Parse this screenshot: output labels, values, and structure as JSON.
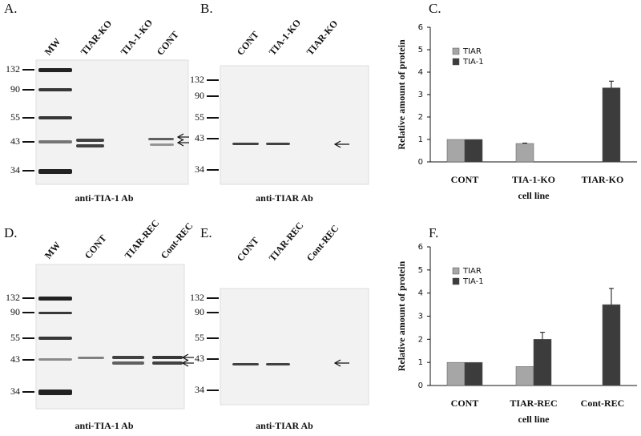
{
  "panels": [
    {
      "label": "A.",
      "lanes": [
        "MW",
        "TIAR-KO",
        "TIA-1-KO",
        "CONT"
      ],
      "markers": [
        132,
        90,
        55,
        43,
        34
      ],
      "caption": "anti-TIA-1 Ab"
    },
    {
      "label": "B.",
      "lanes": [
        "CONT",
        "TIA-1-KO",
        "TIAR-KO"
      ],
      "markers": [
        132,
        90,
        55,
        43,
        34
      ],
      "caption": "anti-TIAR Ab"
    },
    {
      "label": "D.",
      "lanes": [
        "MW",
        "CONT",
        "TIAR-REC",
        "Cont-REC"
      ],
      "markers": [
        132,
        90,
        55,
        43,
        34
      ],
      "caption": "anti-TIA-1 Ab"
    },
    {
      "label": "E.",
      "lanes": [
        "CONT",
        "TIAR-REC",
        "Cont-REC"
      ],
      "markers": [
        132,
        90,
        55,
        43,
        34
      ],
      "caption": "anti-TIAR Ab"
    }
  ],
  "chart_data": [
    {
      "type": "bar",
      "title": "C.",
      "y_label": "Relative amount of protein",
      "x_label": "cell line",
      "categories": [
        "CONT",
        "TIA-1-KO",
        "TIAR-KO"
      ],
      "series": [
        {
          "name": "TIAR",
          "color": "#a6a6a6",
          "values": [
            1,
            0.82,
            0
          ],
          "errors": [
            null,
            0.02,
            null
          ]
        },
        {
          "name": "TIA-1",
          "color": "#3c3c3c",
          "values": [
            1,
            0,
            3.3
          ],
          "errors": [
            null,
            null,
            0.3
          ]
        }
      ],
      "ylim": [
        0,
        6
      ],
      "yticks": [
        0,
        1,
        2,
        3,
        4,
        5,
        6
      ],
      "legend": "upper left"
    },
    {
      "type": "bar",
      "title": "F.",
      "y_label": "Relative amount of protein",
      "x_label": "cell line",
      "categories": [
        "CONT",
        "TIAR-REC",
        "Cont-REC"
      ],
      "series": [
        {
          "name": "TIAR",
          "color": "#a6a6a6",
          "values": [
            1,
            0.82,
            0
          ],
          "errors": [
            null,
            null,
            null
          ]
        },
        {
          "name": "TIA-1",
          "color": "#3c3c3c",
          "values": [
            1,
            2.0,
            3.5
          ],
          "errors": [
            null,
            0.3,
            0.7
          ]
        }
      ],
      "ylim": [
        0,
        6
      ],
      "yticks": [
        0,
        1,
        2,
        3,
        4,
        5,
        6
      ],
      "legend": "upper left"
    }
  ]
}
